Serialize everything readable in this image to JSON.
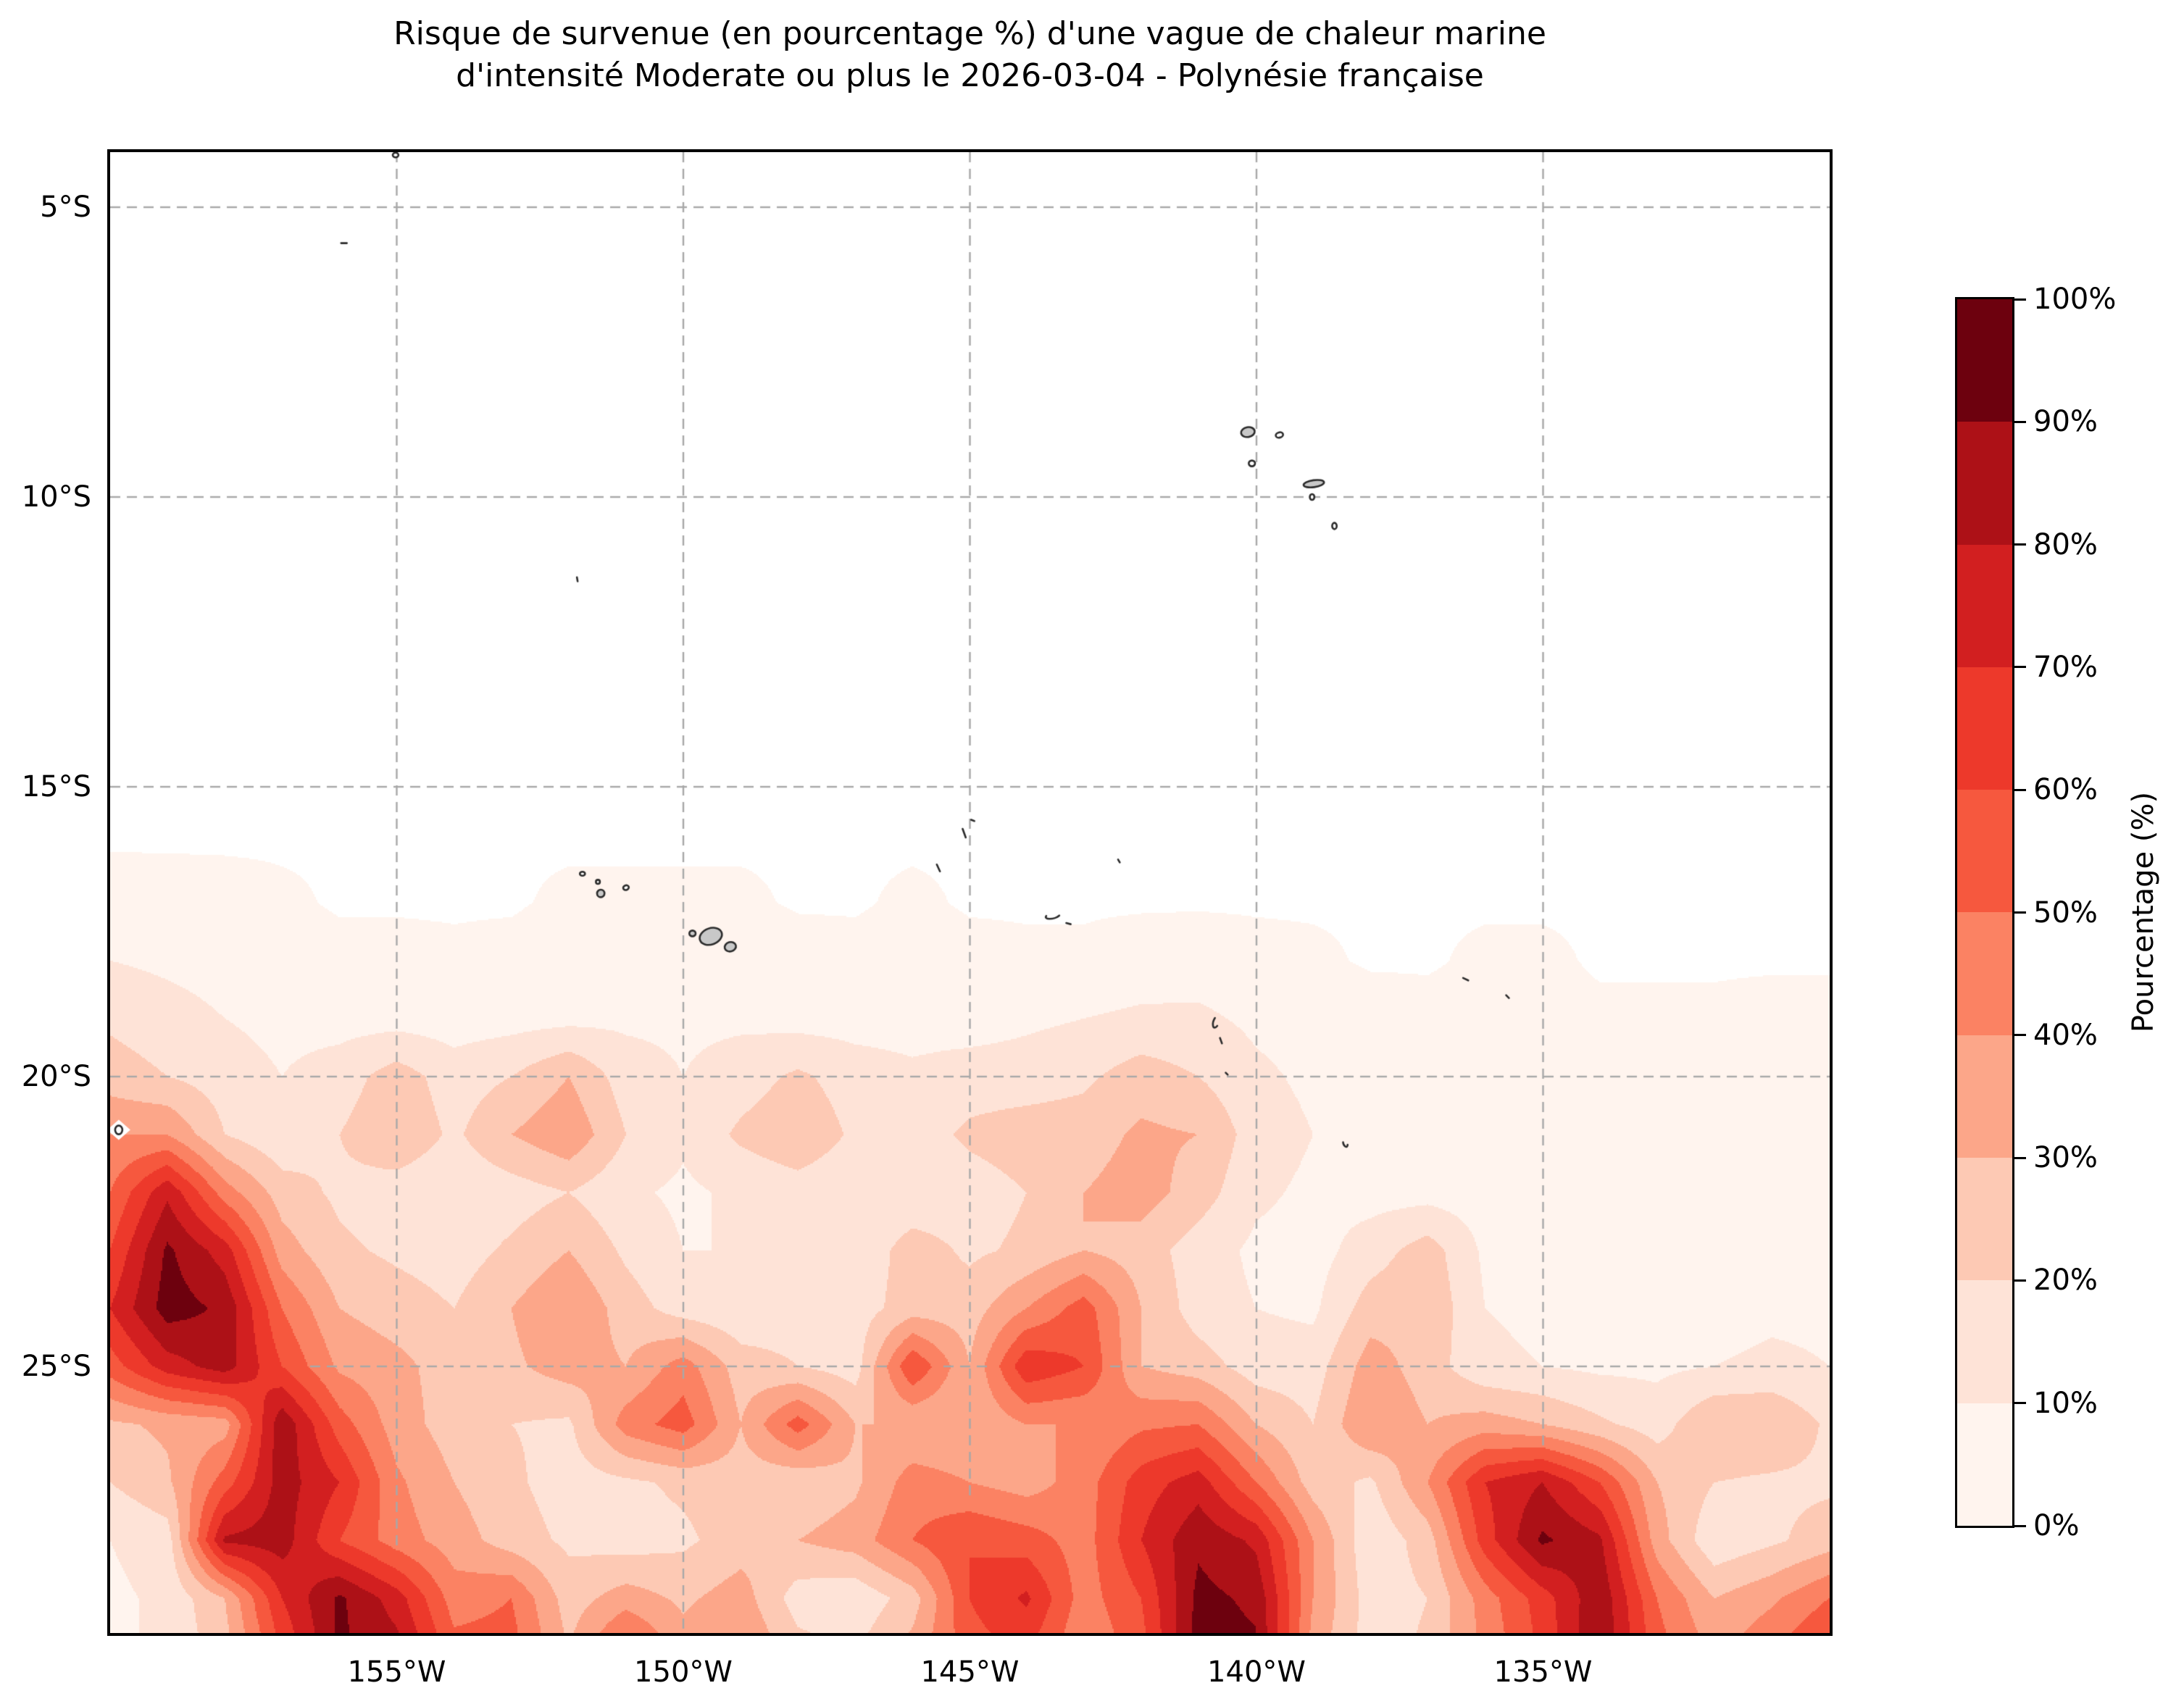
{
  "title": {
    "line1": "Risque de survenue (en pourcentage %) d'une vague de chaleur marine",
    "line2": "d'intensité Moderate ou plus le 2026-03-04 - Polynésie française"
  },
  "axes": {
    "x_tick_labels": [
      "155°W",
      "150°W",
      "145°W",
      "140°W",
      "135°W"
    ],
    "x_tick_lons": [
      -155,
      -150,
      -145,
      -140,
      -135
    ],
    "y_tick_labels": [
      "5°S",
      "10°S",
      "15°S",
      "20°S",
      "25°S"
    ],
    "y_tick_lats": [
      -5,
      -10,
      -15,
      -20,
      -25
    ]
  },
  "colorbar": {
    "label": "Pourcentage (%)",
    "tick_labels": [
      "0%",
      "10%",
      "20%",
      "30%",
      "40%",
      "50%",
      "60%",
      "70%",
      "80%",
      "90%",
      "100%"
    ],
    "levels": [
      0,
      10,
      20,
      30,
      40,
      50,
      60,
      70,
      80,
      90,
      100
    ],
    "colors_low_to_high": [
      "#fff4ee",
      "#fee3d7",
      "#fdc9b4",
      "#fca689",
      "#fb8263",
      "#f6583e",
      "#ed392b",
      "#d21f20",
      "#ad1117",
      "#6d010e"
    ]
  },
  "chart_data": {
    "type": "filled_contour_map",
    "title": "Risque de survenue (en pourcentage %) d'une vague de chaleur marine d'intensité Moderate ou plus le 2026-03-04 - Polynésie française",
    "date": "2026-03-04",
    "region": "Polynésie française",
    "value_name": "Pourcentage (%)",
    "lon_range": [
      -160.0,
      -130.0
    ],
    "lat_range": [
      -29.6,
      -4.05
    ],
    "levels": [
      0,
      10,
      20,
      30,
      40,
      50,
      60,
      70,
      80,
      90,
      100
    ],
    "colors": [
      "#fff4ee",
      "#fee3d7",
      "#fdc9b4",
      "#fca689",
      "#fb8263",
      "#f6583e",
      "#ed392b",
      "#d21f20",
      "#ad1117",
      "#6d010e"
    ],
    "zero_color": "#ffffff",
    "gridlines": {
      "lons": [
        -155,
        -150,
        -145,
        -140,
        -135
      ],
      "lats": [
        -5,
        -10,
        -15,
        -20,
        -25
      ],
      "style": "dashed",
      "color": "#a8a8a8"
    },
    "grid": {
      "lon_start": -160,
      "lon_step": 1,
      "n_lon": 31,
      "lat_start": -4,
      "lat_step": -1,
      "n_lat": 27,
      "values": [
        [
          0,
          0,
          0,
          0,
          0,
          0,
          0,
          0,
          0,
          0,
          0,
          0,
          0,
          0,
          0,
          0,
          0,
          0,
          0,
          0,
          0,
          0,
          0,
          0,
          0,
          0,
          0,
          0,
          0,
          0,
          0
        ],
        [
          0,
          0,
          0,
          0,
          0,
          0,
          0,
          0,
          0,
          0,
          0,
          0,
          0,
          0,
          0,
          0,
          0,
          0,
          0,
          0,
          0,
          0,
          0,
          0,
          0,
          0,
          0,
          0,
          0,
          0,
          0
        ],
        [
          0,
          0,
          0,
          0,
          0,
          0,
          0,
          0,
          0,
          0,
          0,
          0,
          0,
          0,
          0,
          0,
          0,
          0,
          0,
          0,
          0,
          0,
          0,
          0,
          0,
          0,
          0,
          0,
          0,
          0,
          0
        ],
        [
          0,
          0,
          0,
          0,
          0,
          0,
          0,
          0,
          0,
          0,
          0,
          0,
          0,
          0,
          0,
          0,
          0,
          0,
          0,
          0,
          0,
          0,
          0,
          0,
          0,
          0,
          0,
          0,
          0,
          0,
          0
        ],
        [
          0,
          0,
          0,
          0,
          0,
          0,
          0,
          0,
          0,
          0,
          0,
          0,
          0,
          0,
          0,
          0,
          0,
          0,
          0,
          0,
          0,
          0,
          0,
          0,
          0,
          0,
          0,
          0,
          0,
          0,
          0
        ],
        [
          0,
          0,
          0,
          0,
          0,
          0,
          0,
          0,
          0,
          0,
          0,
          0,
          0,
          0,
          0,
          0,
          0,
          0,
          0,
          0,
          0,
          0,
          0,
          0,
          0,
          0,
          0,
          0,
          0,
          0,
          0
        ],
        [
          0,
          0,
          0,
          0,
          0,
          0,
          0,
          0,
          0,
          0,
          0,
          0,
          0,
          0,
          0,
          0,
          0,
          0,
          0,
          0,
          0,
          0,
          0,
          0,
          0,
          0,
          0,
          0,
          0,
          0,
          0
        ],
        [
          0,
          0,
          0,
          0,
          0,
          0,
          0,
          0,
          0,
          0,
          0,
          0,
          0,
          0,
          0,
          0,
          0,
          0,
          0,
          0,
          0,
          0,
          0,
          0,
          0,
          0,
          0,
          0,
          0,
          0,
          0
        ],
        [
          0,
          0,
          0,
          0,
          0,
          0,
          0,
          0,
          0,
          0,
          0,
          0,
          0,
          0,
          0,
          0,
          0,
          0,
          0,
          0,
          0,
          0,
          0,
          0,
          0,
          0,
          0,
          0,
          0,
          0,
          0
        ],
        [
          0,
          0,
          0,
          0,
          0,
          0,
          0,
          0,
          0,
          0,
          0,
          0,
          0,
          0,
          0,
          0,
          0,
          0,
          0,
          0,
          0,
          0,
          0,
          0,
          0,
          0,
          0,
          0,
          0,
          0,
          0
        ],
        [
          0,
          0,
          0,
          0,
          0,
          0,
          0,
          0,
          0,
          0,
          0,
          0,
          0,
          0,
          0,
          0,
          0,
          0,
          0,
          0,
          0,
          0,
          0,
          0,
          0,
          0,
          0,
          0,
          0,
          0,
          0
        ],
        [
          0,
          0,
          0,
          0,
          0,
          0,
          0,
          0,
          0,
          0,
          0,
          0,
          0,
          0,
          0,
          0,
          0,
          0,
          0,
          0,
          0,
          0,
          0,
          0,
          0,
          0,
          0,
          0,
          0,
          0,
          0
        ],
        [
          0,
          0,
          0,
          0,
          0,
          0,
          0,
          0,
          0,
          0,
          0,
          0,
          0,
          0,
          0,
          0,
          0,
          0,
          0,
          0,
          0,
          0,
          0,
          0,
          0,
          0,
          0,
          0,
          0,
          0,
          0
        ],
        [
          6,
          5,
          4,
          2,
          0,
          0,
          0,
          0,
          2,
          2,
          2,
          2,
          0,
          0,
          2,
          0,
          0,
          0,
          0,
          0,
          0,
          0,
          0,
          0,
          0,
          0,
          0,
          0,
          0,
          0,
          0
        ],
        [
          10,
          8,
          6,
          4,
          3,
          3,
          2,
          3,
          5,
          6,
          7,
          6,
          4,
          3,
          4,
          3,
          2,
          2,
          4,
          5,
          3,
          2,
          0,
          0,
          2,
          2,
          0,
          0,
          0,
          0,
          0
        ],
        [
          18,
          14,
          10,
          7,
          6,
          6,
          5,
          6,
          7,
          8,
          8,
          8,
          6,
          6,
          6,
          5,
          8,
          10,
          12,
          12,
          8,
          6,
          4,
          3,
          3,
          3,
          2,
          2,
          2,
          3,
          3
        ],
        [
          25,
          20,
          15,
          10,
          15,
          25,
          15,
          20,
          30,
          15,
          10,
          15,
          22,
          15,
          12,
          15,
          15,
          18,
          25,
          20,
          12,
          8,
          5,
          4,
          4,
          4,
          3,
          3,
          3,
          4,
          4
        ],
        [
          40,
          40,
          20,
          12,
          20,
          28,
          18,
          30,
          38,
          20,
          12,
          22,
          28,
          18,
          15,
          22,
          25,
          25,
          32,
          30,
          15,
          10,
          6,
          5,
          5,
          5,
          4,
          3,
          3,
          5,
          5
        ],
        [
          50,
          78,
          45,
          25,
          18,
          15,
          12,
          15,
          20,
          12,
          8,
          12,
          15,
          12,
          12,
          15,
          20,
          30,
          35,
          25,
          12,
          8,
          6,
          6,
          5,
          5,
          4,
          4,
          4,
          5,
          5
        ],
        [
          60,
          92,
          75,
          35,
          22,
          18,
          15,
          22,
          30,
          18,
          10,
          10,
          12,
          12,
          25,
          18,
          22,
          30,
          25,
          15,
          8,
          6,
          15,
          25,
          8,
          6,
          5,
          5,
          5,
          6,
          6
        ],
        [
          70,
          95,
          88,
          50,
          30,
          25,
          20,
          30,
          40,
          25,
          15,
          12,
          15,
          15,
          25,
          25,
          40,
          55,
          30,
          15,
          10,
          8,
          25,
          28,
          10,
          8,
          6,
          6,
          6,
          8,
          8
        ],
        [
          55,
          75,
          85,
          60,
          38,
          33,
          25,
          28,
          35,
          30,
          45,
          25,
          20,
          15,
          60,
          30,
          68,
          60,
          30,
          25,
          15,
          15,
          35,
          25,
          12,
          10,
          8,
          8,
          10,
          12,
          10
        ],
        [
          28,
          32,
          35,
          88,
          55,
          35,
          25,
          20,
          18,
          45,
          55,
          30,
          55,
          30,
          30,
          30,
          40,
          40,
          48,
          50,
          30,
          20,
          40,
          30,
          35,
          30,
          22,
          15,
          30,
          30,
          18
        ],
        [
          20,
          28,
          55,
          85,
          70,
          42,
          30,
          22,
          15,
          18,
          22,
          25,
          22,
          28,
          45,
          40,
          35,
          45,
          65,
          75,
          50,
          25,
          18,
          40,
          70,
          80,
          60,
          30,
          20,
          18,
          18
        ],
        [
          10,
          15,
          82,
          85,
          60,
          45,
          35,
          25,
          18,
          15,
          18,
          25,
          30,
          35,
          50,
          60,
          55,
          45,
          70,
          88,
          78,
          40,
          12,
          25,
          65,
          92,
          82,
          35,
          12,
          18,
          25
        ],
        [
          8,
          12,
          30,
          70,
          92,
          75,
          45,
          50,
          25,
          35,
          28,
          35,
          15,
          12,
          25,
          60,
          72,
          45,
          60,
          93,
          88,
          40,
          15,
          20,
          45,
          65,
          88,
          50,
          30,
          38,
          50
        ],
        [
          8,
          12,
          25,
          60,
          92,
          85,
          55,
          55,
          30,
          60,
          35,
          42,
          25,
          20,
          35,
          55,
          60,
          40,
          55,
          95,
          92,
          35,
          15,
          22,
          42,
          62,
          90,
          55,
          38,
          50,
          65
        ]
      ]
    },
    "islands": [
      {
        "t": "slash",
        "x": -155.92,
        "y": -5.62,
        "l": 0.1,
        "r": 0
      },
      {
        "t": "ring",
        "x": -155.02,
        "y": -4.1,
        "w": 0.1,
        "h": 0.08,
        "r": 0
      },
      {
        "t": "slash",
        "x": -151.85,
        "y": -11.42,
        "l": 0.07,
        "r": 80
      },
      {
        "t": "fill",
        "x": -140.15,
        "y": -8.88,
        "w": 0.24,
        "h": 0.17,
        "r": -10
      },
      {
        "t": "ring",
        "x": -139.6,
        "y": -8.93,
        "w": 0.13,
        "h": 0.09,
        "r": -15
      },
      {
        "t": "ring",
        "x": -140.08,
        "y": -9.42,
        "w": 0.11,
        "h": 0.1,
        "r": 0
      },
      {
        "t": "fill",
        "x": -139.0,
        "y": -9.77,
        "w": 0.36,
        "h": 0.12,
        "r": -8
      },
      {
        "t": "ring",
        "x": -139.03,
        "y": -10.0,
        "w": 0.08,
        "h": 0.1,
        "r": 0
      },
      {
        "t": "ring",
        "x": -138.64,
        "y": -10.5,
        "w": 0.08,
        "h": 0.11,
        "r": 0
      },
      {
        "t": "slash",
        "x": -145.1,
        "y": -15.8,
        "l": 0.16,
        "r": 70
      },
      {
        "t": "slash",
        "x": -144.95,
        "y": -15.58,
        "l": 0.06,
        "r": 20
      },
      {
        "t": "slash",
        "x": -145.55,
        "y": -16.4,
        "l": 0.13,
        "r": 65
      },
      {
        "t": "arc",
        "x": -143.55,
        "y": -17.22,
        "w": 0.26,
        "h": 0.1,
        "r": -15
      },
      {
        "t": "slash",
        "x": -143.28,
        "y": -17.36,
        "l": 0.08,
        "r": 15
      },
      {
        "t": "slash",
        "x": -142.4,
        "y": -16.28,
        "l": 0.06,
        "r": 60
      },
      {
        "t": "ring",
        "x": -151.76,
        "y": -16.5,
        "w": 0.09,
        "h": 0.07,
        "r": 0
      },
      {
        "t": "ring",
        "x": -151.49,
        "y": -16.64,
        "w": 0.07,
        "h": 0.07,
        "r": 0
      },
      {
        "t": "fill",
        "x": -151.44,
        "y": -16.84,
        "w": 0.13,
        "h": 0.13,
        "r": 0
      },
      {
        "t": "ring",
        "x": -151.0,
        "y": -16.74,
        "w": 0.1,
        "h": 0.08,
        "r": -20
      },
      {
        "t": "fill",
        "x": -149.84,
        "y": -17.53,
        "w": 0.11,
        "h": 0.1,
        "r": 0
      },
      {
        "t": "tahiti",
        "x": -149.45,
        "y": -17.63
      },
      {
        "t": "arc",
        "x": -140.7,
        "y": -19.05,
        "w": 0.1,
        "h": 0.22,
        "r": 20
      },
      {
        "t": "slash",
        "x": -140.62,
        "y": -19.38,
        "l": 0.1,
        "r": 70
      },
      {
        "t": "slash",
        "x": -140.52,
        "y": -19.95,
        "l": 0.05,
        "r": 45
      },
      {
        "t": "slash",
        "x": -136.35,
        "y": -18.32,
        "l": 0.1,
        "r": 25
      },
      {
        "t": "slash",
        "x": -135.62,
        "y": -18.62,
        "l": 0.07,
        "r": 45
      },
      {
        "t": "arc",
        "x": -138.45,
        "y": -21.15,
        "w": 0.07,
        "h": 0.13,
        "r": -20
      },
      {
        "t": "holering",
        "x": -159.85,
        "y": -20.92,
        "w": 0.09,
        "h": 0.09,
        "r": 0
      }
    ]
  },
  "layout_hints": {
    "grid_on": true,
    "legend_position": "right-colorbar",
    "background": "#ffffff"
  }
}
